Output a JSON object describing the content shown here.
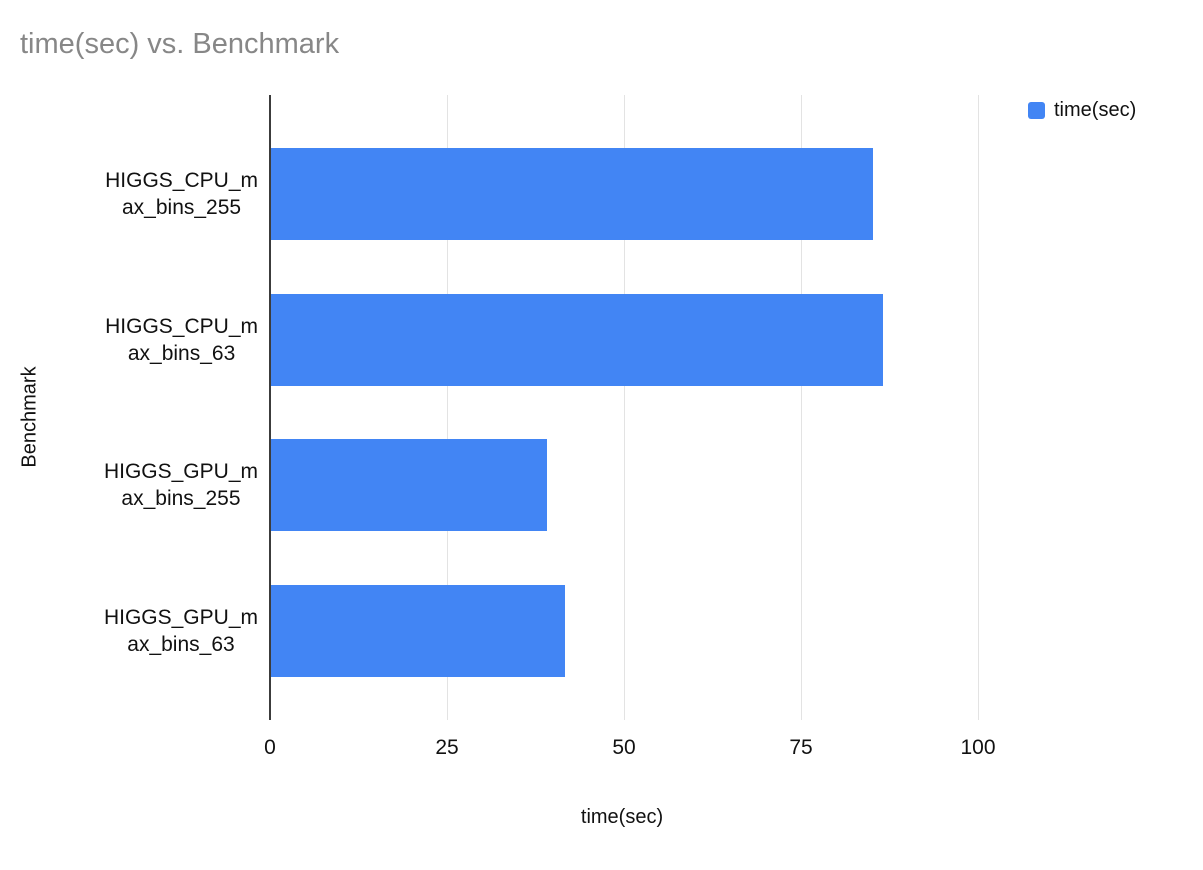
{
  "chart_data": {
    "type": "bar",
    "orientation": "horizontal",
    "title": "time(sec) vs. Benchmark",
    "xlabel": "time(sec)",
    "ylabel": "Benchmark",
    "legend": {
      "label": "time(sec)",
      "position": "top-right"
    },
    "categories": [
      "HIGGS_CPU_max_bins_255",
      "HIGGS_CPU_max_bins_63",
      "HIGGS_GPU_max_bins_255",
      "HIGGS_GPU_max_bins_63"
    ],
    "category_label_lines": [
      [
        "HIGGS_CPU_m",
        "ax_bins_255"
      ],
      [
        "HIGGS_CPU_m",
        "ax_bins_63"
      ],
      [
        "HIGGS_GPU_m",
        "ax_bins_255"
      ],
      [
        "HIGGS_GPU_m",
        "ax_bins_63"
      ]
    ],
    "values": [
      85,
      86.5,
      39,
      41.5
    ],
    "xticks": [
      0,
      25,
      50,
      75,
      100
    ],
    "xlim": [
      0,
      126
    ],
    "grid": true,
    "bar_color": "#4285f4",
    "gridline_color": "#e3e3e3",
    "axis_color": "#3c3c3c",
    "title_color": "#878787"
  }
}
